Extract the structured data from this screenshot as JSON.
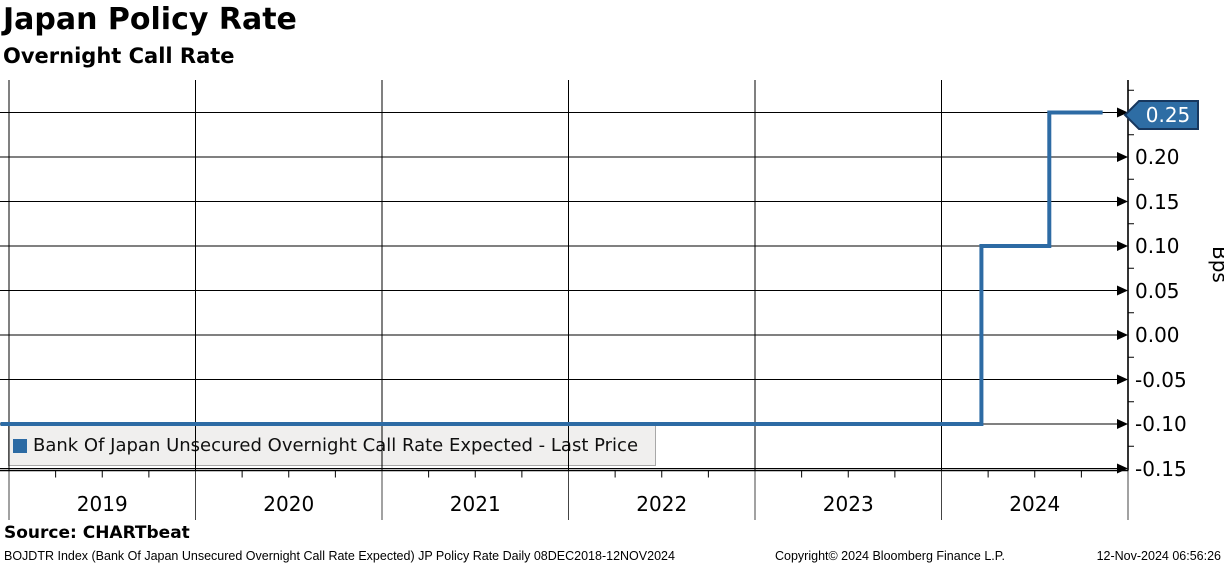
{
  "header": {
    "title": "Japan Policy Rate",
    "subtitle": "Overnight Call Rate"
  },
  "legend": {
    "label": "Bank Of Japan Unsecured Overnight Call Rate Expected - Last Price",
    "swatch_color": "#2d6ba4"
  },
  "footer": {
    "source": "Source: CHARTbeat",
    "description": "BOJDTR Index (Bank Of Japan Unsecured Overnight Call Rate Expected) JP Policy Rate  Daily 08DEC2018-12NOV2024",
    "copyright": "Copyright© 2024 Bloomberg Finance L.P.",
    "timestamp": "12-Nov-2024 06:56:26"
  },
  "colors": {
    "line": "#2d6ba4",
    "bubble_fill": "#2e6da4",
    "bubble_border": "#17375e",
    "grid": "#000000",
    "band_separator": "#444444",
    "legend_bg": "#f0efee"
  },
  "chart_data": {
    "type": "line",
    "style": "step-after",
    "title": "Japan Policy Rate",
    "subtitle": "Overnight Call Rate",
    "ylabel": "Bps",
    "xlabel": "",
    "grid": true,
    "legend_position": "bottom-left inside",
    "x_unit": "year (decimal)",
    "xlim": [
      2018.95,
      2025.0
    ],
    "ylim": [
      -0.155,
      0.287
    ],
    "yticks": [
      0.25,
      0.2,
      0.15,
      0.1,
      0.05,
      0.0,
      -0.05,
      -0.1,
      -0.15
    ],
    "ytick_labels": [
      "0.25",
      "0.20",
      "0.15",
      "0.10",
      "0.05",
      "0.00",
      "-0.05",
      "-0.10",
      "-0.15"
    ],
    "y_minor_tick_step": 0.025,
    "x_year_labels": [
      "2019",
      "2020",
      "2021",
      "2022",
      "2023",
      "2024"
    ],
    "x_year_boundaries": [
      2019,
      2020,
      2021,
      2022,
      2023,
      2024,
      2025
    ],
    "last_price": "0.25",
    "series_name": "Bank Of Japan Unsecured Overnight Call Rate Expected - Last Price",
    "events": [
      {
        "date": "08DEC2018",
        "value": -0.1
      },
      {
        "date": "19MAR2024",
        "value": 0.1
      },
      {
        "date": "31JUL2024",
        "value": 0.25
      },
      {
        "date": "12NOV2024",
        "value": 0.25
      }
    ],
    "points": [
      [
        2018.95,
        -0.1
      ],
      [
        2024.214,
        -0.1
      ],
      [
        2024.214,
        0.1
      ],
      [
        2024.578,
        0.1
      ],
      [
        2024.578,
        0.25
      ],
      [
        2024.864,
        0.25
      ]
    ]
  }
}
